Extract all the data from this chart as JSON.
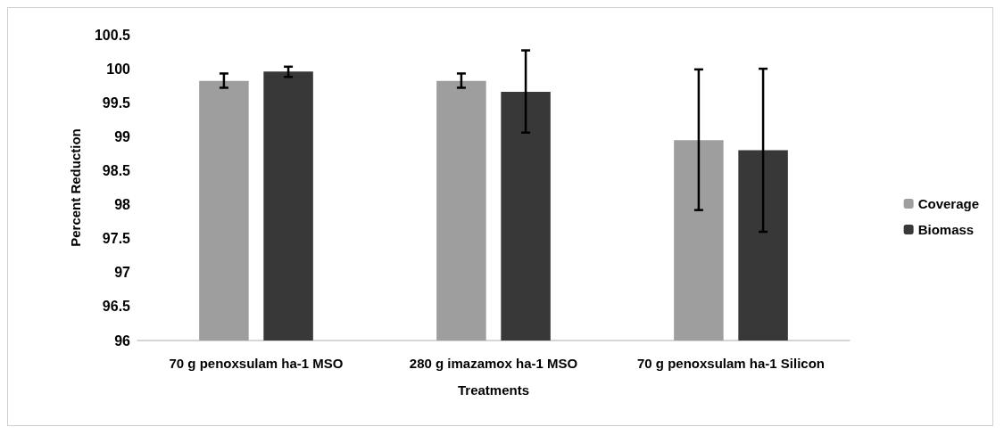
{
  "chart_data": {
    "type": "bar",
    "xlabel": "Treatments",
    "ylabel": "Percent Reduction",
    "categories": [
      "70 g penoxsulam ha-1 MSO",
      "280 g imazamox ha-1 MSO",
      "70 g penoxsulam ha-1 Silicon"
    ],
    "series": [
      {
        "name": "Coverage",
        "color": "#9e9e9e",
        "values": [
          99.82,
          99.82,
          98.95
        ],
        "errors": [
          [
            99.72,
            99.93
          ],
          [
            99.72,
            99.93
          ],
          [
            97.92,
            99.99
          ]
        ]
      },
      {
        "name": "Biomass",
        "color": "#383838",
        "values": [
          99.96,
          99.66,
          98.8
        ],
        "errors": [
          [
            99.88,
            100.03
          ],
          [
            99.06,
            100.27
          ],
          [
            97.6,
            100.0
          ]
        ]
      }
    ],
    "ylim": [
      96,
      100.5
    ],
    "yticks": [
      96,
      96.5,
      97,
      97.5,
      98,
      98.5,
      99,
      99.5,
      100,
      100.5
    ],
    "grid": false,
    "legend": "right"
  }
}
